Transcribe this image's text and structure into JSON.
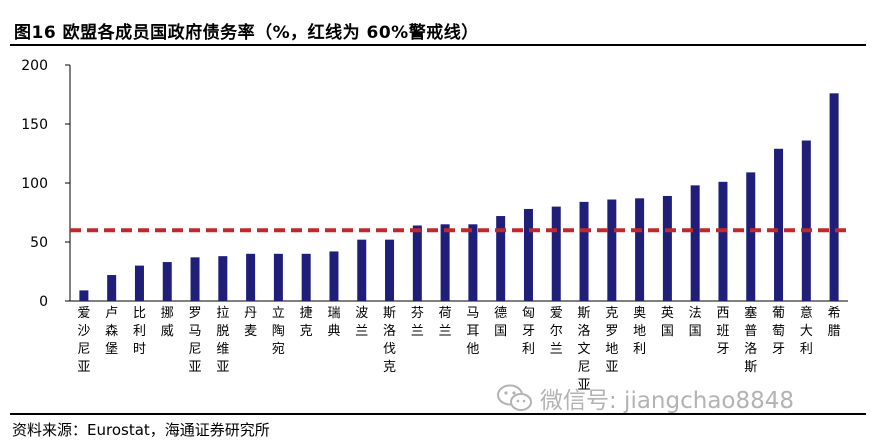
{
  "header": {
    "title": "图16 欧盟各成员国政府债务率（%，红线为 60%警戒线）"
  },
  "footer": {
    "source": "资料来源：Eurostat，海通证券研究所"
  },
  "watermark": {
    "text": "微信号: jiangchao8848",
    "logo_icon": "wechat-logo-icon"
  },
  "colors": {
    "bar": "#1f1f7a",
    "reference_line": "#c0282b",
    "axis": "#000000"
  },
  "chart_data": {
    "type": "bar",
    "categories": [
      "爱沙尼亚",
      "卢森堡",
      "比利时",
      "挪威",
      "罗马尼亚",
      "拉脱维亚",
      "丹麦",
      "立陶宛",
      "捷克",
      "瑞典",
      "波兰",
      "斯洛伐克",
      "芬兰",
      "荷兰",
      "马耳他",
      "德国",
      "匈牙利",
      "爱尔兰",
      "斯洛文尼亚",
      "克罗地亚",
      "奥地利",
      "英国",
      "法国",
      "西班牙",
      "塞普洛斯",
      "葡萄牙",
      "意大利",
      "希腊"
    ],
    "values": [
      9,
      22,
      30,
      33,
      37,
      38,
      40,
      40,
      40,
      42,
      52,
      52,
      64,
      65,
      65,
      72,
      78,
      80,
      84,
      86,
      87,
      89,
      98,
      101,
      109,
      129,
      136,
      176
    ],
    "reference_line": 60,
    "ylim": [
      0,
      200
    ],
    "yticks": [
      0,
      50,
      100,
      150,
      200
    ],
    "title": "图16 欧盟各成员国政府债务率（%，红线为 60%警戒线）",
    "xlabel": "",
    "ylabel": "",
    "grid": false
  }
}
